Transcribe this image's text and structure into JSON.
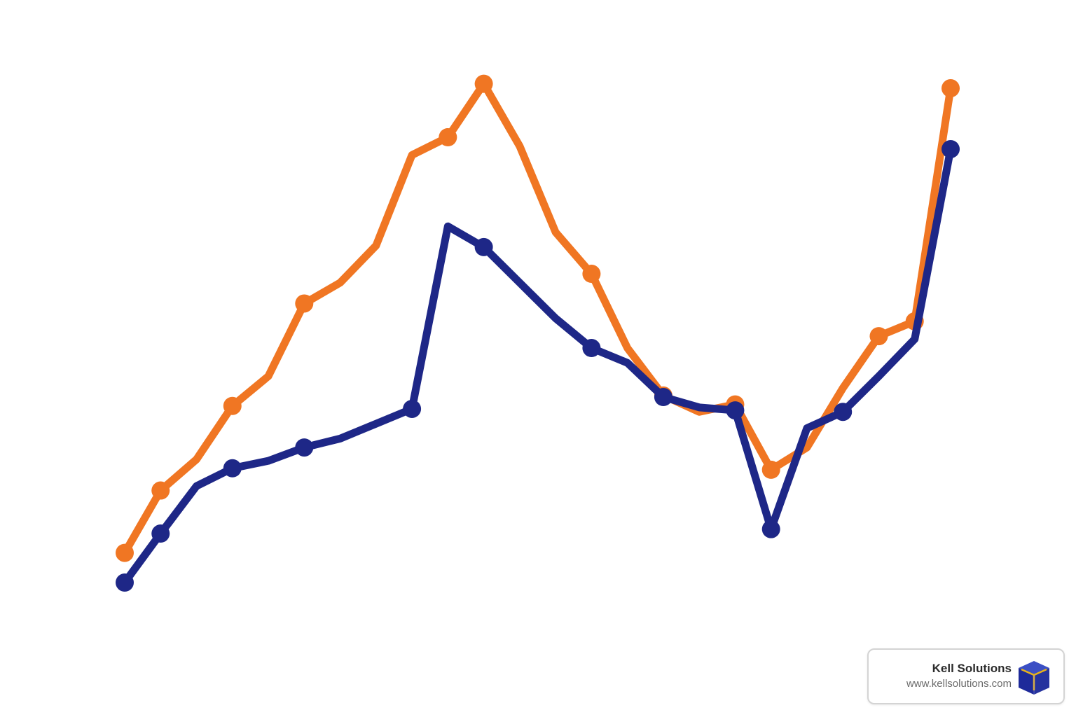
{
  "chart_data": {
    "type": "line",
    "x": [
      0,
      1,
      2,
      3,
      4,
      5,
      6,
      7,
      8,
      9,
      10,
      11,
      12,
      13,
      14,
      15,
      16,
      17,
      18,
      19,
      20,
      21,
      22,
      23
    ],
    "series": [
      {
        "color": "#f07623",
        "values": [
          2.0,
          6.2,
          8.3,
          11.9,
          13.9,
          18.8,
          20.2,
          22.7,
          28.8,
          30.0,
          33.6,
          29.4,
          23.6,
          20.8,
          15.8,
          12.6,
          11.5,
          12.0,
          7.6,
          9.1,
          13.1,
          16.6,
          17.6,
          33.3
        ],
        "markers": [
          true,
          true,
          false,
          true,
          false,
          true,
          false,
          false,
          false,
          true,
          true,
          false,
          false,
          true,
          false,
          true,
          false,
          true,
          true,
          false,
          false,
          true,
          true,
          true
        ]
      },
      {
        "color": "#1e2787",
        "values": [
          0.0,
          3.3,
          6.5,
          7.7,
          8.2,
          9.1,
          9.7,
          10.7,
          11.7,
          24.0,
          22.6,
          20.2,
          17.8,
          15.8,
          14.8,
          12.5,
          11.8,
          11.6,
          3.6,
          10.4,
          11.5,
          13.9,
          16.4,
          29.2
        ],
        "markers": [
          true,
          true,
          false,
          true,
          false,
          true,
          false,
          false,
          true,
          false,
          true,
          false,
          false,
          true,
          false,
          true,
          false,
          true,
          true,
          false,
          true,
          false,
          false,
          true
        ]
      }
    ],
    "ylim": [
      0,
      35
    ],
    "grid": false,
    "axes_visible": false
  },
  "brand": {
    "name": "Kell Solutions",
    "url": "www.kellsolutions.com",
    "logo_icon": "blue-cube-icon",
    "logo_colors": [
      "#1e2a9a",
      "#e8b21a"
    ]
  }
}
